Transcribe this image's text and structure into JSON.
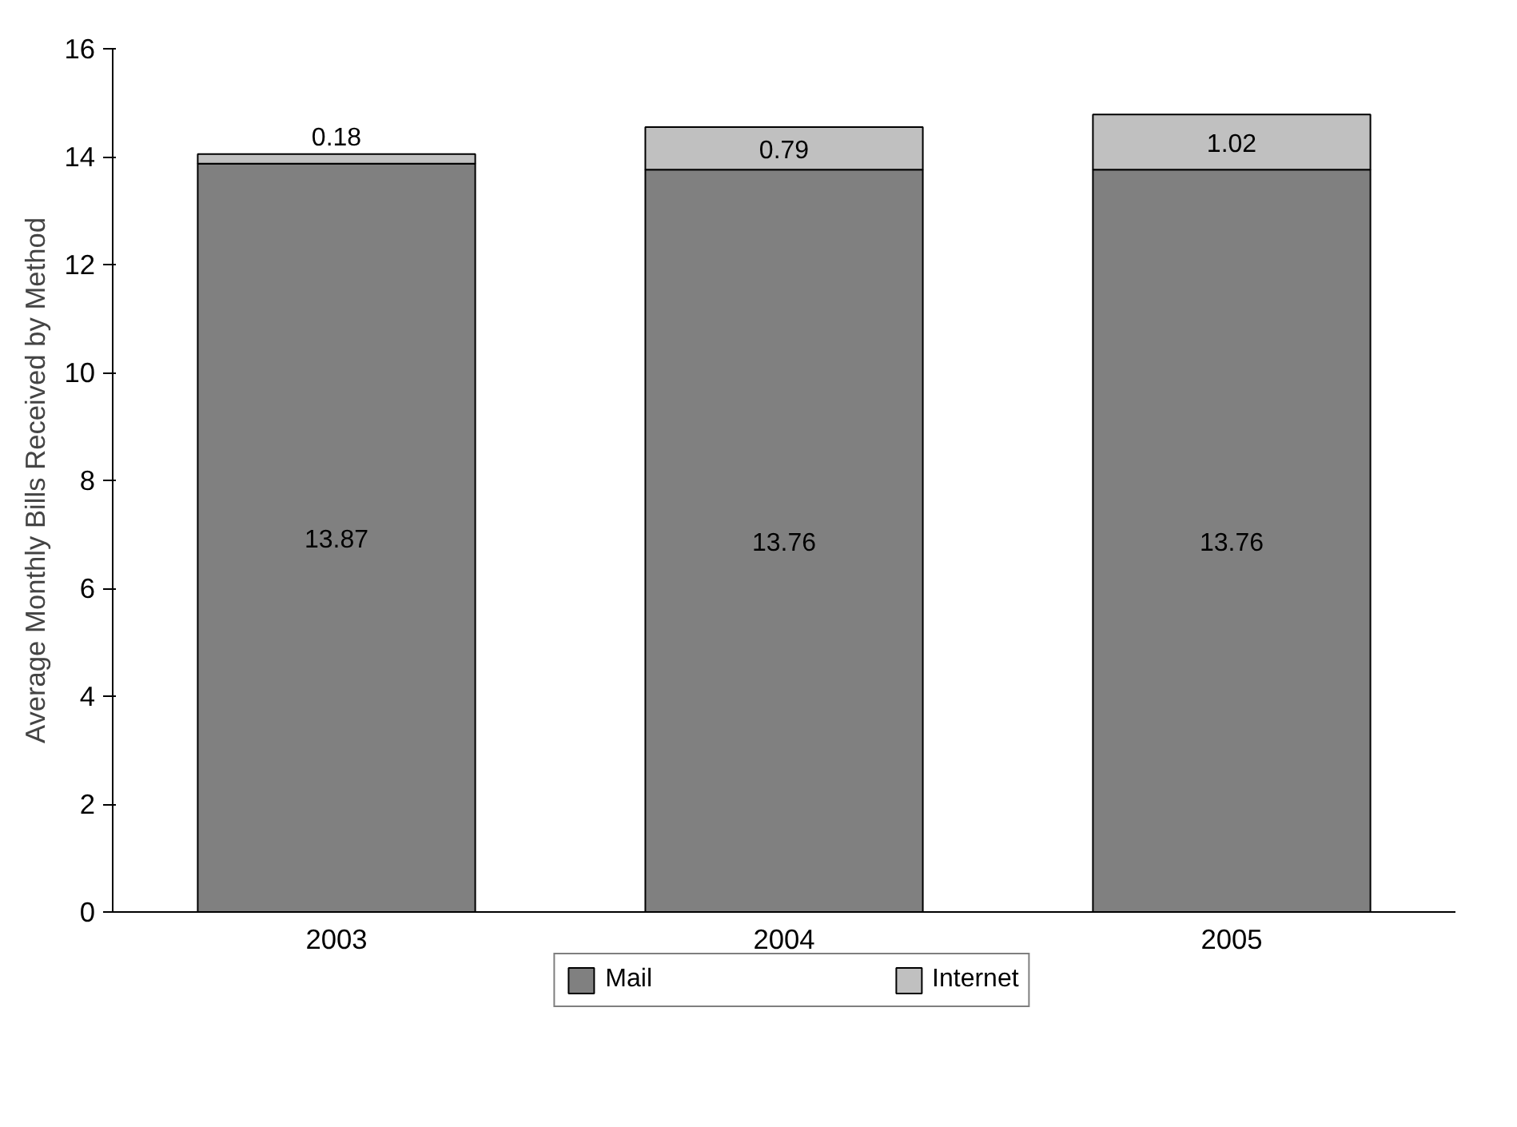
{
  "chart_data": {
    "type": "bar",
    "stacked": true,
    "ylabel": "Average Monthly Bills Received by Method",
    "categories": [
      "2003",
      "2004",
      "2005"
    ],
    "series": [
      {
        "name": "Mail",
        "color": "#808080",
        "values": [
          13.87,
          13.76,
          13.76
        ]
      },
      {
        "name": "Internet",
        "color": "#c0c0c0",
        "values": [
          0.18,
          0.79,
          1.02
        ]
      }
    ],
    "ylim": [
      0,
      16
    ],
    "yticks": [
      0,
      2,
      4,
      6,
      8,
      10,
      12,
      14,
      16
    ],
    "data_labels": true,
    "legend": "bottom",
    "grid": false
  }
}
